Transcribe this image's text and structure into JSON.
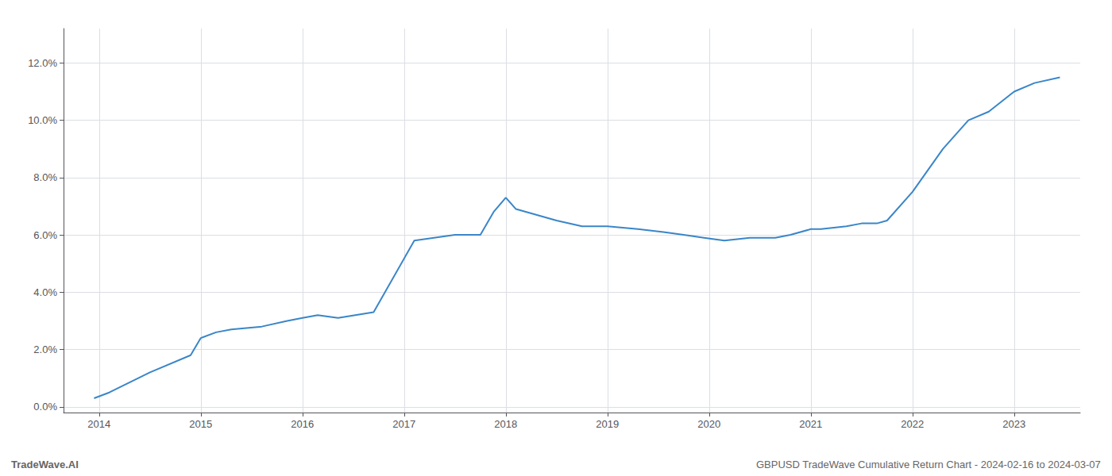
{
  "chart_data": {
    "type": "line",
    "annotations": [
      "TradeWave.AI",
      "GBPUSD TradeWave Cumulative Return Chart - 2024-02-16 to 2024-03-07"
    ],
    "x": [
      2013.95,
      2014.1,
      2014.5,
      2014.9,
      2015.0,
      2015.15,
      2015.3,
      2015.6,
      2015.85,
      2016.0,
      2016.15,
      2016.35,
      2016.7,
      2017.1,
      2017.5,
      2017.75,
      2017.88,
      2018.0,
      2018.1,
      2018.5,
      2018.75,
      2019.0,
      2019.3,
      2019.55,
      2019.75,
      2019.95,
      2020.15,
      2020.4,
      2020.65,
      2020.8,
      2021.0,
      2021.1,
      2021.35,
      2021.5,
      2021.65,
      2021.75,
      2022.0,
      2022.3,
      2022.55,
      2022.75,
      2023.0,
      2023.2,
      2023.45
    ],
    "values": [
      0.003,
      0.005,
      0.012,
      0.018,
      0.024,
      0.026,
      0.027,
      0.028,
      0.03,
      0.031,
      0.032,
      0.031,
      0.033,
      0.058,
      0.06,
      0.06,
      0.068,
      0.073,
      0.069,
      0.065,
      0.063,
      0.063,
      0.062,
      0.061,
      0.06,
      0.059,
      0.058,
      0.059,
      0.059,
      0.06,
      0.062,
      0.062,
      0.063,
      0.064,
      0.064,
      0.065,
      0.075,
      0.09,
      0.1,
      0.103,
      0.11,
      0.113,
      0.115
    ],
    "color": "#3a86c8",
    "xlim": [
      2013.65,
      2023.65
    ],
    "xticks": [
      2014,
      2015,
      2016,
      2017,
      2018,
      2019,
      2020,
      2021,
      2022,
      2023
    ],
    "ylim": [
      -0.002,
      0.132
    ],
    "yticks": [
      {
        "value": 0.0,
        "label": "0.0%"
      },
      {
        "value": 0.02,
        "label": "2.0%"
      },
      {
        "value": 0.04,
        "label": "4.0%"
      },
      {
        "value": 0.06,
        "label": "6.0%"
      },
      {
        "value": 0.08,
        "label": "8.0%"
      },
      {
        "value": 0.1,
        "label": "10.0%"
      },
      {
        "value": 0.12,
        "label": "12.0%"
      }
    ],
    "grid": true
  }
}
